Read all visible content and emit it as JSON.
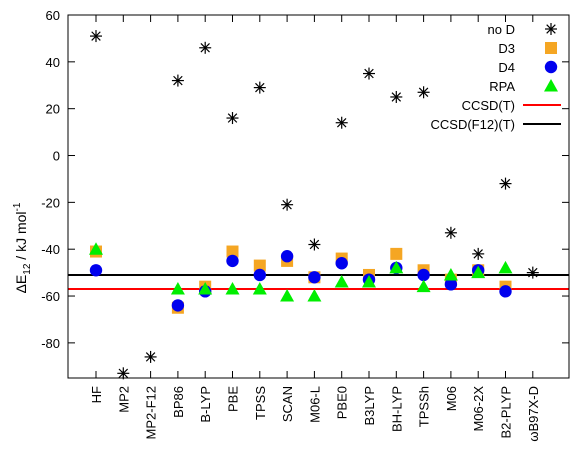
{
  "chart_data": {
    "type": "scatter",
    "categories": [
      "HF",
      "MP2",
      "MP2-F12",
      "BP86",
      "B-LYP",
      "PBE",
      "TPSS",
      "SCAN",
      "M06-L",
      "PBE0",
      "B3LYP",
      "BH-LYP",
      "TPSSh",
      "M06",
      "M06-2X",
      "B2-PLYP",
      "ωB97X-D"
    ],
    "ylim": [
      -95,
      60
    ],
    "yticks": [
      60,
      40,
      20,
      0,
      -20,
      -40,
      -60,
      -80
    ],
    "ylabel_main": "ΔE",
    "ylabel_sub": "12",
    "ylabel_unit": " / kJ mol",
    "ylabel_sup": "-1",
    "series": [
      {
        "name": "no D",
        "marker": "star",
        "color": "#000000",
        "values": [
          51,
          -93,
          -86,
          32,
          46,
          16,
          29,
          -21,
          -38,
          14,
          35,
          25,
          27,
          -33,
          -42,
          -12,
          -50
        ]
      },
      {
        "name": "D3",
        "marker": "square",
        "color": "#f5a623",
        "values": [
          -41,
          null,
          null,
          -65,
          -56,
          -41,
          -47,
          -45,
          -52,
          -44,
          -51,
          -42,
          -49,
          -53,
          -49,
          -56,
          null
        ]
      },
      {
        "name": "D4",
        "marker": "circle",
        "color": "#0000ee",
        "values": [
          -49,
          null,
          null,
          -64,
          -58,
          -45,
          -51,
          -43,
          -52,
          -46,
          -53,
          -48,
          -51,
          -55,
          -49,
          -58,
          null
        ]
      },
      {
        "name": "RPA",
        "marker": "triangle",
        "color": "#00ee00",
        "values": [
          -40,
          null,
          null,
          -57,
          -57,
          -57,
          -57,
          -60,
          -60,
          -54,
          -54,
          -48,
          -56,
          -51,
          -50,
          -48,
          null
        ]
      }
    ],
    "reference_lines": [
      {
        "name": "CCSD(T)",
        "value": -57,
        "color": "#ff0000"
      },
      {
        "name": "CCSD(F12)(T)",
        "value": -51,
        "color": "#000000"
      }
    ],
    "grid": false,
    "legend_position": "top-right"
  }
}
